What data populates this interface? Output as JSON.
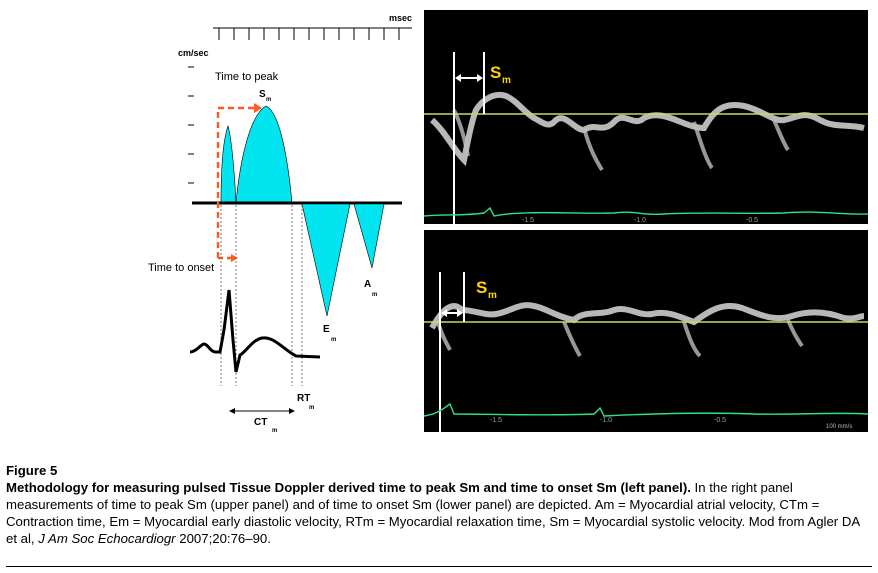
{
  "left_panel": {
    "msec_label": "msec",
    "velocity_unit_label": "cm/sec",
    "time_to_peak_label": "Time to peak",
    "time_to_onset_label": "Time to onset",
    "sm_label": "S",
    "sm_sub": "m",
    "em_label": "E",
    "em_sub": "m",
    "am_label": "A",
    "am_sub": "m",
    "rt_label": "RT",
    "rt_sub": "m",
    "ct_label": "CT",
    "ct_sub": "m",
    "wave_color": "#00e5f0",
    "arrow_color": "#ff5a1f"
  },
  "right_panel": {
    "upper": {
      "sm_label": "S",
      "sm_sub": "m",
      "ecg_marks": [
        "-1.5",
        "-1.0",
        "-0.5"
      ]
    },
    "lower": {
      "sm_label": "S",
      "sm_sub": "m",
      "ecg_marks": [
        "-1.5",
        "-1.0",
        "-0.5"
      ],
      "scale_text": "100 mm/s"
    },
    "label_color": "#ffd400",
    "baseline_color": "#c8d86a",
    "ecg_color": "#2fe08a"
  },
  "caption": {
    "figure_label": "Figure 5",
    "title": "Methodology for measuring pulsed Tissue Doppler derived time to peak Sm and time to onset Sm (left panel).",
    "body_before_journal": " In the right panel measurements of time to peak Sm (upper panel) and of time to onset Sm (lower panel) are depicted. Am = Myocardial atrial velocity, CTm = Contraction time, Em = Myocardial early diastolic velocity, RTm = Myocardial relaxation time, Sm = Myocardial systolic velocity. Mod from Agler DA et al, ",
    "journal": "J Am Soc Echocardiogr",
    "body_after_journal": " 2007;20:76–90."
  }
}
